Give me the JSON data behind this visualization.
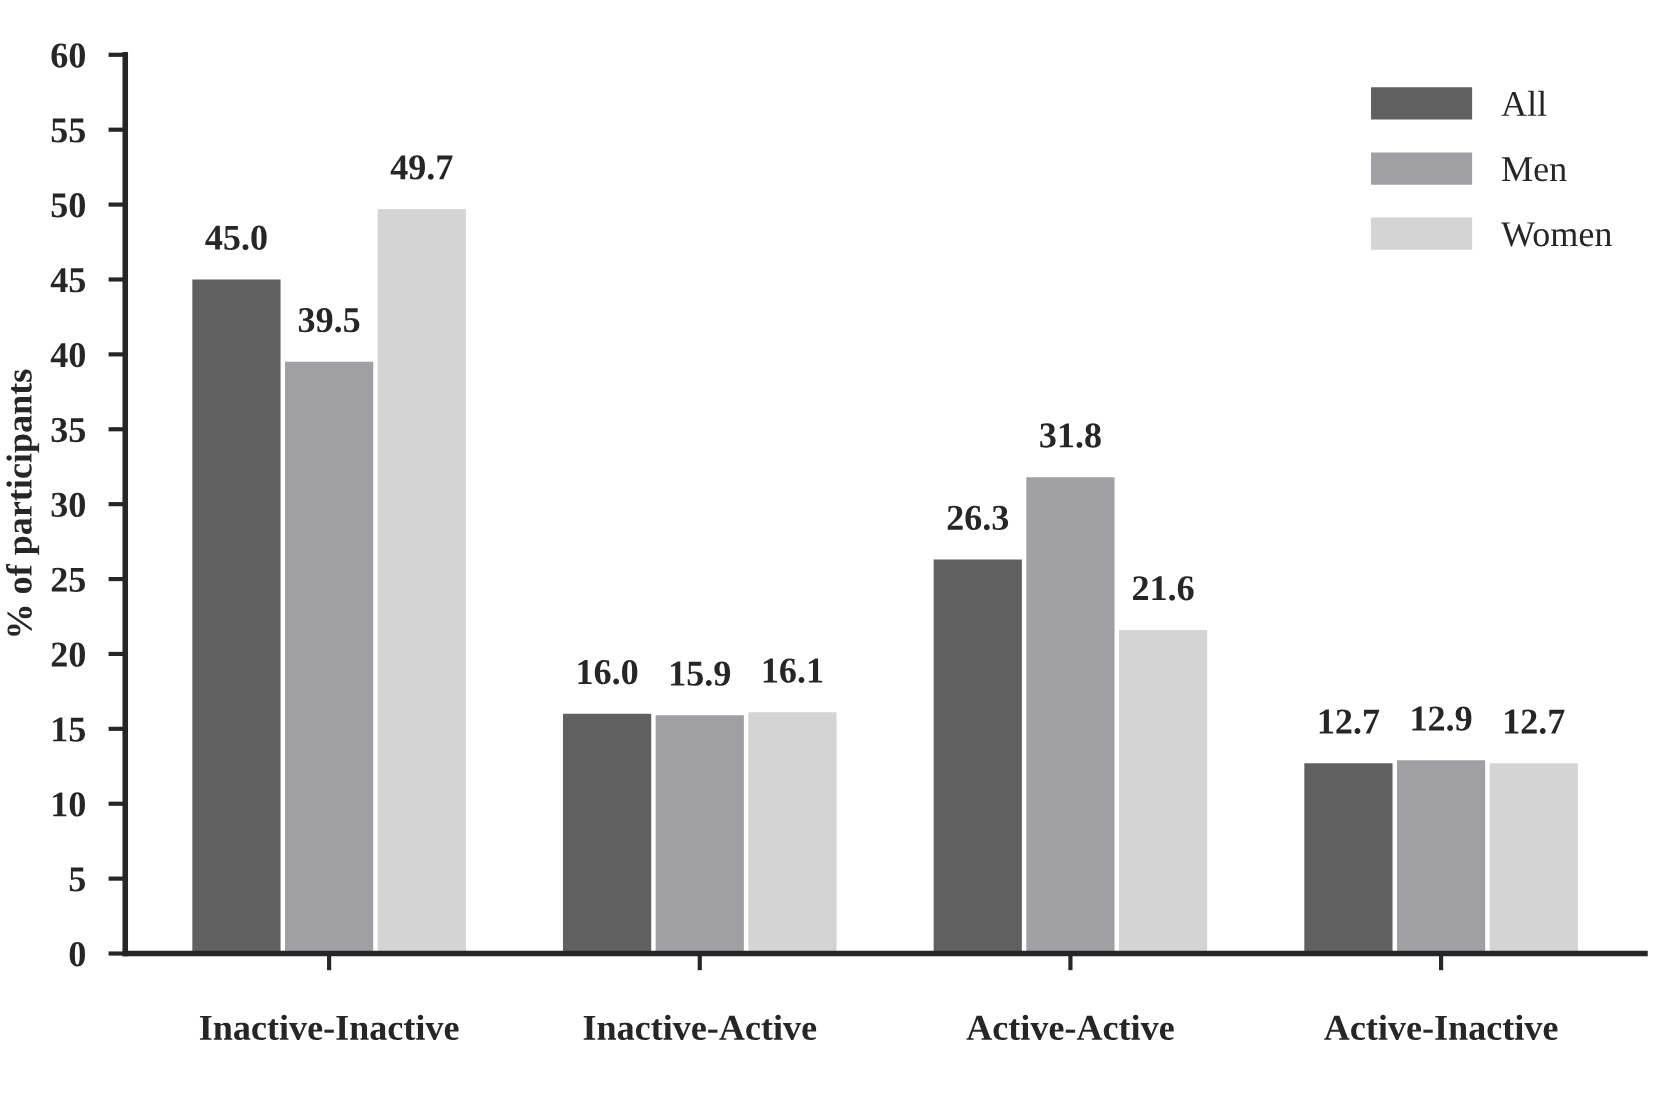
{
  "chart_data": {
    "type": "bar",
    "ylabel": "% of participants",
    "categories": [
      "Inactive-Inactive",
      "Inactive-Active",
      "Active-Active",
      "Active-Inactive"
    ],
    "series": [
      {
        "name": "All",
        "color": "#606060",
        "values": [
          45.0,
          16.0,
          26.3,
          12.7
        ],
        "value_labels": [
          "45.0",
          "16.0",
          "26.3",
          "12.7"
        ]
      },
      {
        "name": "Men",
        "color": "#a0a0a4",
        "values": [
          39.5,
          15.9,
          31.8,
          12.9
        ],
        "value_labels": [
          "39.5",
          "15.9",
          "31.8",
          "12.9"
        ]
      },
      {
        "name": "Women",
        "color": "#d4d4d4",
        "values": [
          49.7,
          16.1,
          21.6,
          12.7
        ],
        "value_labels": [
          "49.7",
          "16.1",
          "21.6",
          "12.7"
        ]
      }
    ],
    "ylim": [
      0,
      60
    ],
    "yticks": [
      0,
      5,
      10,
      15,
      20,
      25,
      30,
      35,
      40,
      45,
      50,
      55,
      60
    ],
    "grid": false,
    "legend": "top right"
  }
}
